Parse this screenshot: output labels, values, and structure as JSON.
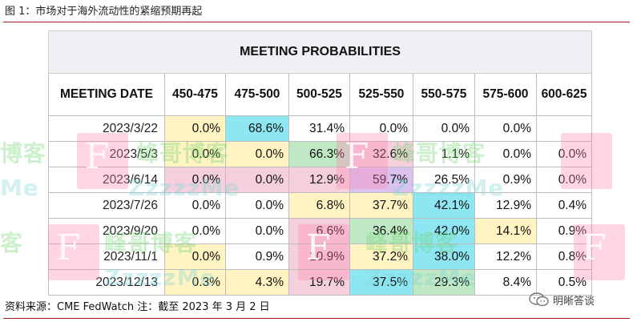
{
  "figure": {
    "title": "图 1：市场对于海外流动性的紧缩预期再起"
  },
  "table": {
    "banner": "MEETING PROBABILITIES",
    "columns": [
      "MEETING DATE",
      "450-475",
      "475-500",
      "500-525",
      "525-550",
      "550-575",
      "575-600",
      "600-625"
    ],
    "rows": [
      {
        "date": "2023/3/22",
        "values": [
          "0.0%",
          "68.6%",
          "31.4%",
          "0.0%",
          "0.0%",
          "0.0%",
          ""
        ]
      },
      {
        "date": "2023/5/3",
        "values": [
          "0.0%",
          "0.0%",
          "66.3%",
          "32.6%",
          "1.1%",
          "0.0%",
          "0.0%"
        ]
      },
      {
        "date": "2023/6/14",
        "values": [
          "0.0%",
          "0.0%",
          "12.9%",
          "59.7%",
          "26.5%",
          "0.9%",
          "0.0%"
        ]
      },
      {
        "date": "2023/7/26",
        "values": [
          "0.0%",
          "0.0%",
          "6.8%",
          "37.7%",
          "42.1%",
          "12.9%",
          "0.4%"
        ]
      },
      {
        "date": "2023/9/20",
        "values": [
          "0.0%",
          "0.0%",
          "6.6%",
          "36.4%",
          "42.0%",
          "14.1%",
          "0.9%"
        ]
      },
      {
        "date": "2023/11/1",
        "values": [
          "0.0%",
          "0.9%",
          "10.9%",
          "37.2%",
          "38.0%",
          "12.2%",
          "0.8%"
        ]
      },
      {
        "date": "2023/12/13",
        "values": [
          "0.3%",
          "4.3%",
          "19.7%",
          "37.5%",
          "29.3%",
          "8.4%",
          "0.5%"
        ]
      }
    ]
  },
  "source": {
    "text": "资料来源：CME FedWatch 注：截至 2023 年 3 月 2 日"
  },
  "brand": {
    "name": "明晰答谈"
  },
  "colors": {
    "rule": "#9b1c1c",
    "highlight_blue": "#8ee6f2",
    "highlight_yellow": "#fff4c2",
    "highlight_green": "#bfe8c4",
    "highlight_pink": "#f5d0dc",
    "watermark_pink": "#ff88b8",
    "watermark_green": "#6ed36e"
  }
}
